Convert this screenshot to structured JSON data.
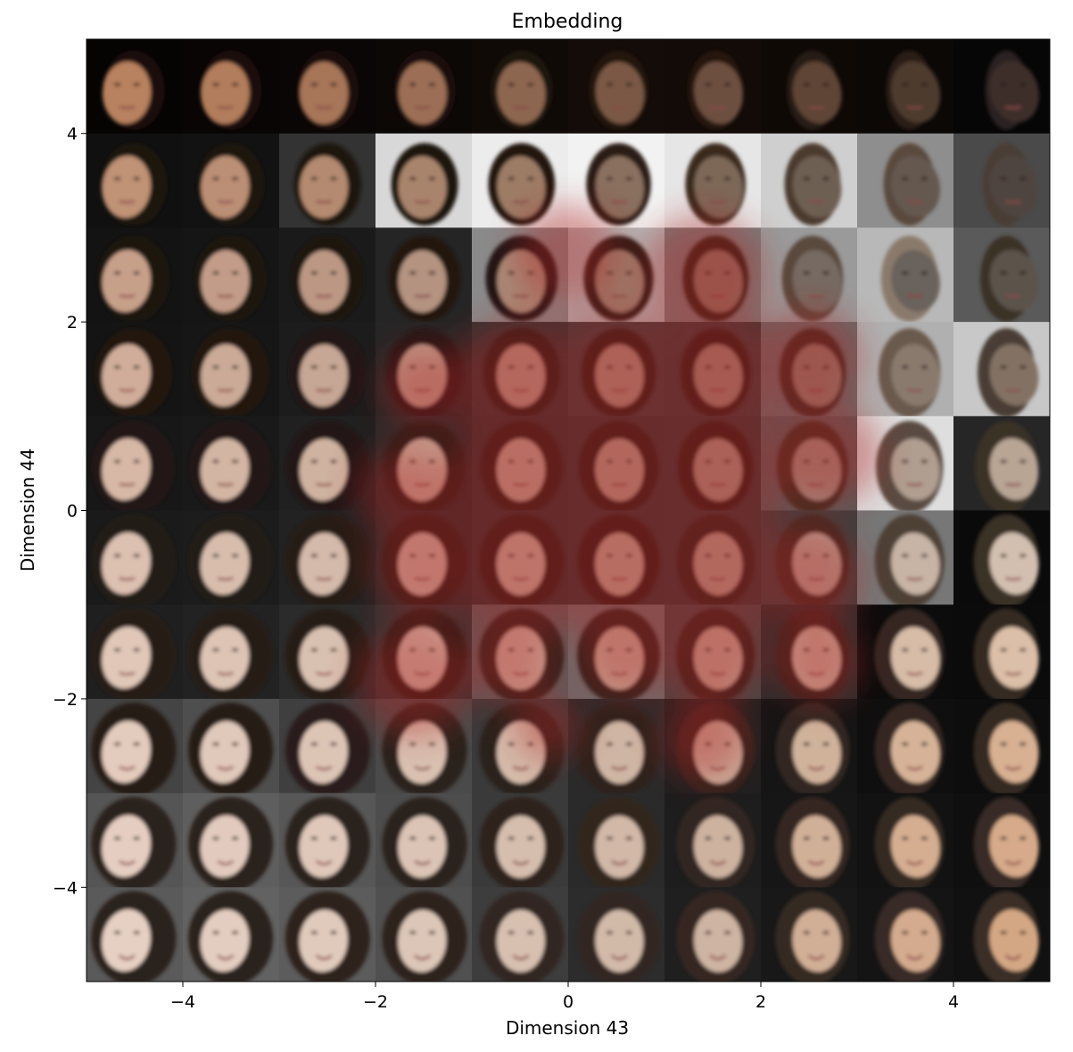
{
  "chart_data": {
    "type": "image-grid",
    "title": "Embedding",
    "xlabel": "Dimension 43",
    "ylabel": "Dimension 44",
    "xlim": [
      -5,
      5
    ],
    "ylim": [
      -5,
      5
    ],
    "xticks": [
      -4,
      -2,
      0,
      2,
      4
    ],
    "yticks": [
      -4,
      -2,
      0,
      2,
      4
    ],
    "xtick_labels": [
      "−4",
      "−2",
      "0",
      "2",
      "4"
    ],
    "ytick_labels": [
      "−4",
      "−2",
      "0",
      "2",
      "4"
    ],
    "grid": false,
    "grid_rows": 10,
    "grid_cols": 10,
    "cell_content": "generated face image",
    "background_colors": [
      [
        "#060403",
        "#080504",
        "#0a0605",
        "#0c0806",
        "#100a07",
        "#140c08",
        "#120b07",
        "#0f0906",
        "#0b0806",
        "#060606"
      ],
      [
        "#111010",
        "#131212",
        "#333333",
        "#d8d8d8",
        "#ececec",
        "#f2f2f2",
        "#e6e6e6",
        "#cfcfcf",
        "#8e8e8e",
        "#4a4a4a"
      ],
      [
        "#131313",
        "#151515",
        "#1a1a1a",
        "#252525",
        "#8a8a8a",
        "#b5b5b5",
        "#7c7c7c",
        "#9a9a9a",
        "#b8b8b8",
        "#5a5a5a"
      ],
      [
        "#141414",
        "#161616",
        "#1c1c1c",
        "#262626",
        "#333333",
        "#3d3d3d",
        "#3a3a3a",
        "#6a6a6a",
        "#b0b0b0",
        "#c8c8c8"
      ],
      [
        "#171717",
        "#191919",
        "#202020",
        "#292929",
        "#303030",
        "#353535",
        "#363636",
        "#5a5a5a",
        "#dedede",
        "#262626"
      ],
      [
        "#1a1a1a",
        "#1c1c1c",
        "#222222",
        "#2a2a2a",
        "#303030",
        "#343434",
        "#363636",
        "#3e3e3e",
        "#777777",
        "#0a0a0a"
      ],
      [
        "#1f1f1f",
        "#222222",
        "#2b2b2b",
        "#333333",
        "#5d5d5d",
        "#6d6d6d",
        "#464646",
        "#2c2c2c",
        "#0c0c0c",
        "#0b0b0b"
      ],
      [
        "#444444",
        "#4e4e4e",
        "#3f3f3f",
        "#4a4a4a",
        "#3a3a3a",
        "#2a2a2a",
        "#202020",
        "#151515",
        "#0f0f0f",
        "#0d0d0d"
      ],
      [
        "#555555",
        "#5e5e5e",
        "#575757",
        "#4d4d4d",
        "#3a3a3a",
        "#2a2a2a",
        "#1d1d1d",
        "#161616",
        "#121212",
        "#0f0f0f"
      ],
      [
        "#5a5a5a",
        "#626262",
        "#5c5c5c",
        "#505050",
        "#3d3d3d",
        "#2c2c2c",
        "#1f1f1f",
        "#181818",
        "#141414",
        "#111111"
      ]
    ],
    "skin_colors": [
      [
        "#b8815e",
        "#b27d5c",
        "#a77558",
        "#9b6e54",
        "#8d6650",
        "#7a5944",
        "#6d5040",
        "#5e4536",
        "#4e3a2e",
        "#3c2f29"
      ],
      [
        "#c09276",
        "#bb8f74",
        "#b48a70",
        "#a9846c",
        "#9d7c66",
        "#8a705e",
        "#7d6758",
        "#6e5e52",
        "#655850",
        "#4f4540"
      ],
      [
        "#c7a08a",
        "#c29c88",
        "#bc9884",
        "#b49380",
        "#a98a77",
        "#9b7f6e",
        "#8c7466",
        "#766a62",
        "#6a625c",
        "#5b524b"
      ],
      [
        "#d0ad9a",
        "#cbaa97",
        "#c6a694",
        "#bfa18f",
        "#b79a88",
        "#ab8f7e",
        "#9e8474",
        "#8f7b6e",
        "#8a7a6e",
        "#837264"
      ],
      [
        "#d7b8a6",
        "#d3b5a3",
        "#cfb2a0",
        "#c8ad9b",
        "#c1a794",
        "#b49b88",
        "#a78f7e",
        "#a08d80",
        "#b09e90",
        "#b8a594"
      ],
      [
        "#dcc0b0",
        "#d8bdad",
        "#d4baaa",
        "#ceb5a4",
        "#c8b09e",
        "#bea593",
        "#b59c8b",
        "#b9a596",
        "#c7b4a5",
        "#d2bfaf"
      ],
      [
        "#e0c7b8",
        "#ddc4b5",
        "#d9c1b1",
        "#d4bcac",
        "#cfb7a6",
        "#c9b09e",
        "#c4aa98",
        "#ccb3a0",
        "#d7bca7",
        "#dcbfa8"
      ],
      [
        "#e3cbbd",
        "#e0c8ba",
        "#ddc5b6",
        "#d9c1b1",
        "#d4bcab",
        "#cfb6a4",
        "#cbb19e",
        "#d0b29b",
        "#d6b398",
        "#d8b092"
      ],
      [
        "#e5cec1",
        "#e2cbbe",
        "#dfc8ba",
        "#dbc4b5",
        "#d6beae",
        "#d1b8a7",
        "#cdb2a0",
        "#d1b098",
        "#d5ae92",
        "#d6aa8a"
      ],
      [
        "#e6d0c3",
        "#e3cdc0",
        "#e0cabc",
        "#dcc6b7",
        "#d7c0b0",
        "#d2baa9",
        "#ceb4a2",
        "#d1af96",
        "#d4ab8e",
        "#d4a784"
      ]
    ],
    "hair_colors": [
      [
        "#1a0f0a",
        "#1a0f0a",
        "#1b100b",
        "#1c110c",
        "#1e120d",
        "#22160f",
        "#251911",
        "#271b13",
        "#2a1e16",
        "#2a2420"
      ],
      [
        "#1c120d",
        "#1c120d",
        "#1d130e",
        "#1e140f",
        "#201610",
        "#2a1d14",
        "#3a2a1e",
        "#4b3a2e",
        "#5a4a3c",
        "#4a3e34"
      ],
      [
        "#1e140f",
        "#1e140f",
        "#1f1510",
        "#201611",
        "#221812",
        "#2a1c14",
        "#2e2016",
        "#5a4a3e",
        "#8a7a6c",
        "#3a3028"
      ],
      [
        "#201611",
        "#201611",
        "#211712",
        "#221813",
        "#241a14",
        "#281c15",
        "#2a1d16",
        "#3a2c22",
        "#6a5a4e",
        "#4a3e34"
      ],
      [
        "#221813",
        "#221813",
        "#231914",
        "#241a15",
        "#261c16",
        "#281d17",
        "#2a1e18",
        "#3c2e24",
        "#5a4c42",
        "#3a3028"
      ],
      [
        "#241a15",
        "#241a15",
        "#251b16",
        "#261c17",
        "#281e18",
        "#2a1f19",
        "#2c201a",
        "#3a2c24",
        "#4e4036",
        "#3a3028"
      ],
      [
        "#261c17",
        "#261c17",
        "#271d18",
        "#281e19",
        "#2a201a",
        "#2c211b",
        "#2e221c",
        "#30241e",
        "#342820",
        "#362a22"
      ],
      [
        "#281e19",
        "#281e19",
        "#291f1a",
        "#2a201b",
        "#2c221c",
        "#2e231d",
        "#30241e",
        "#322620",
        "#342822",
        "#362a24"
      ],
      [
        "#2a201b",
        "#2a201b",
        "#2b211c",
        "#2c221d",
        "#2e241e",
        "#30251f",
        "#322620",
        "#342822",
        "#362a24",
        "#382c26"
      ],
      [
        "#2c221d",
        "#2c221d",
        "#2d231e",
        "#2e241f",
        "#302620",
        "#322721",
        "#342822",
        "#362a24",
        "#382c26",
        "#3a2e28"
      ]
    ],
    "overlay_blobs": [
      {
        "x": 0.0,
        "y": 2.7,
        "r": 0.55
      },
      {
        "x": 1.4,
        "y": 2.5,
        "r": 0.65
      },
      {
        "x": -1.5,
        "y": 1.3,
        "r": 0.45
      },
      {
        "x": -0.5,
        "y": 1.3,
        "r": 0.75
      },
      {
        "x": 0.5,
        "y": 1.4,
        "r": 0.75
      },
      {
        "x": 1.5,
        "y": 1.4,
        "r": 0.75
      },
      {
        "x": 2.5,
        "y": 1.6,
        "r": 0.55
      },
      {
        "x": -1.7,
        "y": 0.2,
        "r": 0.5
      },
      {
        "x": -0.5,
        "y": 0.3,
        "r": 0.8
      },
      {
        "x": 0.5,
        "y": 0.3,
        "r": 0.8
      },
      {
        "x": 1.5,
        "y": 0.4,
        "r": 0.8
      },
      {
        "x": 2.7,
        "y": 0.6,
        "r": 0.55
      },
      {
        "x": -1.5,
        "y": -0.6,
        "r": 0.55
      },
      {
        "x": -0.5,
        "y": -0.6,
        "r": 0.8
      },
      {
        "x": 0.5,
        "y": -0.6,
        "r": 0.8
      },
      {
        "x": 1.5,
        "y": -0.6,
        "r": 0.8
      },
      {
        "x": 2.5,
        "y": -0.7,
        "r": 0.55
      },
      {
        "x": -1.6,
        "y": -1.8,
        "r": 0.6
      },
      {
        "x": -0.6,
        "y": -1.6,
        "r": 0.45
      },
      {
        "x": 0.6,
        "y": -1.5,
        "r": 0.5
      },
      {
        "x": 1.5,
        "y": -1.5,
        "r": 0.55
      },
      {
        "x": 2.6,
        "y": -1.6,
        "r": 0.45
      },
      {
        "x": 1.4,
        "y": -2.4,
        "r": 0.45
      },
      {
        "x": -0.2,
        "y": -2.3,
        "r": 0.35
      }
    ],
    "overlay_color": "#b22222"
  }
}
